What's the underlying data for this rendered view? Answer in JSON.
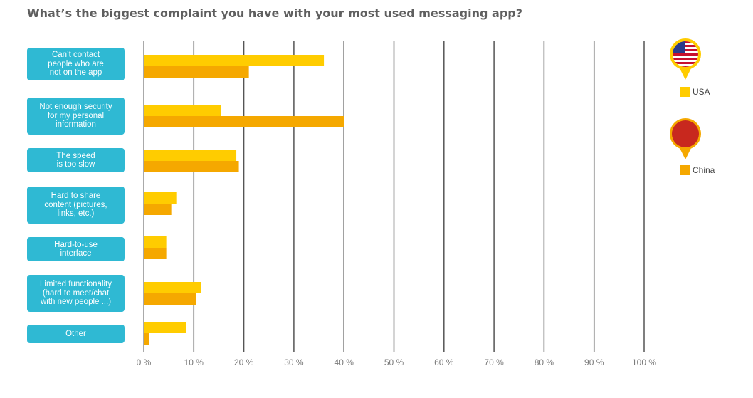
{
  "title": "What’s the biggest complaint you have with your most used messaging app?",
  "colors": {
    "usa": "#ffcc00",
    "china": "#f5a800",
    "label_bg": "#2fb9d3",
    "grid": "#555555",
    "tick_text": "#7a7a7a"
  },
  "legend": [
    {
      "name": "USA",
      "color": "#ffcc00",
      "flag": "usa-flag-icon"
    },
    {
      "name": "China",
      "color": "#f5a800",
      "flag": "china-flag-icon"
    }
  ],
  "chart_data": {
    "type": "bar",
    "orientation": "horizontal",
    "categories": [
      "Can’t contact people who are not on the app",
      "Not enough security for my personal information",
      "The speed is too slow",
      "Hard to share content (pictures, links, etc.)",
      "Hard-to-use interface",
      "Limited functionality (hard to meet/chat with new people ...)",
      "Other"
    ],
    "category_lines": [
      [
        "Can’t contact",
        "people who are",
        "not on the app"
      ],
      [
        "Not enough security",
        "for my personal",
        "information"
      ],
      [
        "The speed",
        "is too slow"
      ],
      [
        "Hard to share",
        "content (pictures,",
        "links, etc.)"
      ],
      [
        "Hard-to-use",
        "interface"
      ],
      [
        "Limited functionality",
        "(hard to meet/chat",
        "with new people ...)"
      ],
      [
        "Other"
      ]
    ],
    "series": [
      {
        "name": "USA",
        "values": [
          36,
          15.5,
          18.5,
          6.5,
          4.5,
          11.5,
          8.5
        ]
      },
      {
        "name": "China",
        "values": [
          21,
          40,
          19,
          5.5,
          4.5,
          10.5,
          1
        ]
      }
    ],
    "xlim": [
      0,
      100
    ],
    "xticks": [
      "0 %",
      "10 %",
      "20 %",
      "30 %",
      "40 %",
      "50 %",
      "60 %",
      "70 %",
      "80 %",
      "90 %",
      "100 %"
    ],
    "grid": true,
    "legend_position": "right"
  }
}
